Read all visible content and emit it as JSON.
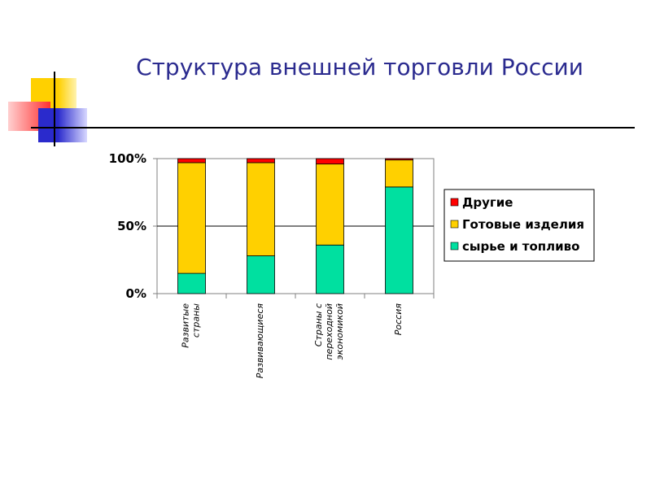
{
  "title": "Структура внешней торговли России",
  "colors": {
    "title": "#2b2b8f",
    "raw": "#00e0a0",
    "finished": "#ffd000",
    "other": "#ff0000",
    "deco_yellow": "#ffd000",
    "deco_red": "#ff4040",
    "deco_blue": "#2a2acc"
  },
  "chart_data": {
    "type": "bar",
    "stacked": true,
    "categories": [
      [
        "Развитые",
        "страны"
      ],
      [
        "Развивающиеся"
      ],
      [
        "Страны с",
        "переходной",
        "экономикой"
      ],
      [
        "Россия"
      ]
    ],
    "series": [
      {
        "name": "сырье и топливо",
        "color": "#00e0a0",
        "values": [
          15,
          28,
          36,
          79
        ]
      },
      {
        "name": "Готовые изделия",
        "color": "#ffd000",
        "values": [
          82,
          69,
          60,
          20
        ]
      },
      {
        "name": "Другие",
        "color": "#ff0000",
        "values": [
          3,
          3,
          4,
          1
        ]
      }
    ],
    "legend_order": [
      "Другие",
      "Готовые изделия",
      "сырье и топливо"
    ],
    "yticks": [
      "0%",
      "50%",
      "100%"
    ],
    "ylim": [
      0,
      100
    ],
    "legend_position": "right",
    "grid": true
  }
}
